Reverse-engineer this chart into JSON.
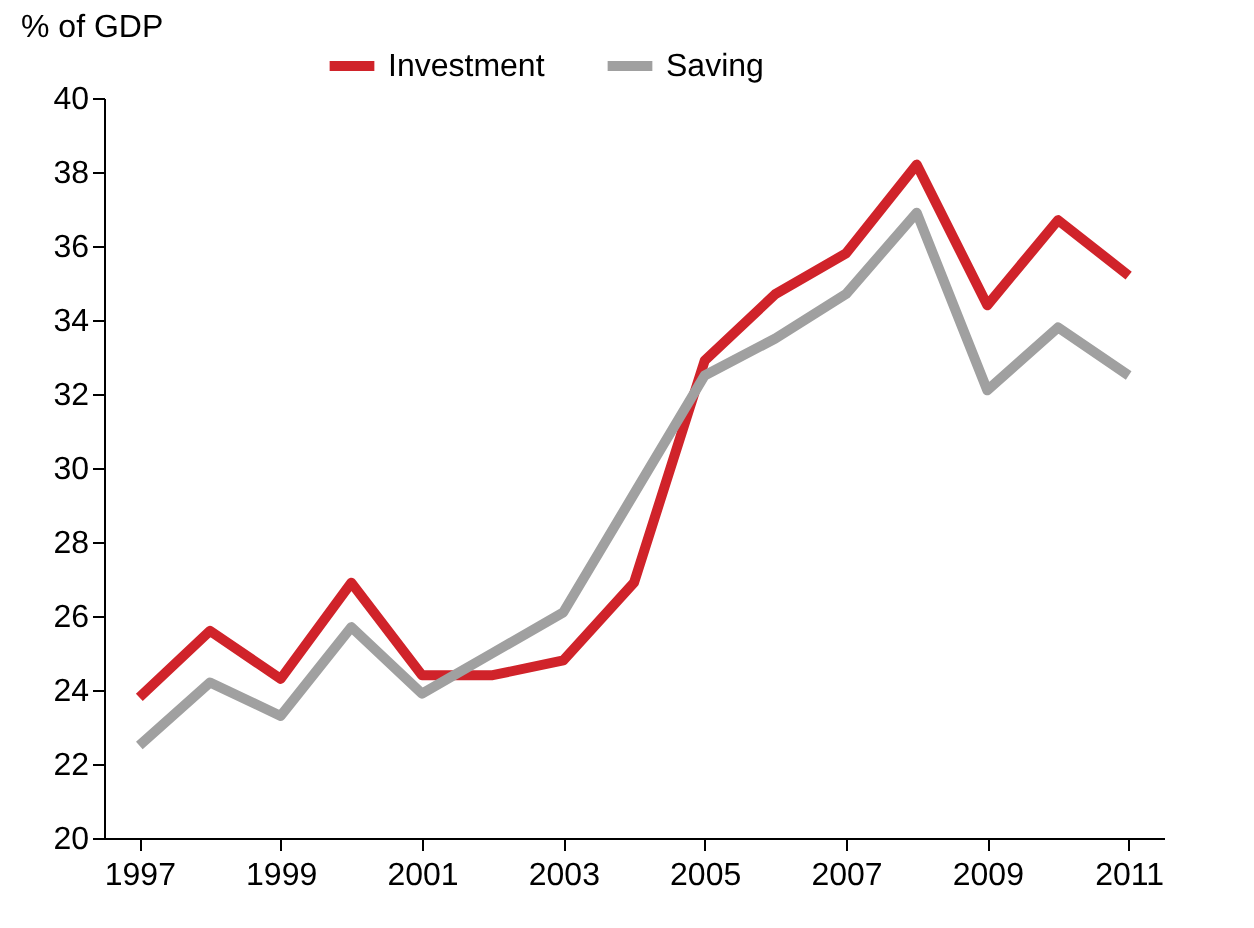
{
  "chart_data": {
    "type": "line",
    "ylabel": "% of GDP",
    "x": [
      1997,
      1998,
      1999,
      2000,
      2001,
      2002,
      2003,
      2004,
      2005,
      2006,
      2007,
      2008,
      2009,
      2010,
      2011
    ],
    "series": [
      {
        "name": "Investment",
        "color": "#d0232a",
        "values": [
          23.8,
          25.6,
          24.3,
          26.9,
          24.4,
          24.4,
          24.8,
          26.9,
          32.9,
          34.7,
          35.8,
          38.2,
          34.4,
          36.7,
          35.2
        ]
      },
      {
        "name": "Saving",
        "color": "#a0a0a0",
        "values": [
          22.5,
          24.2,
          23.3,
          25.7,
          23.9,
          25.0,
          26.1,
          29.3,
          32.5,
          33.5,
          34.7,
          36.9,
          32.1,
          33.8,
          32.5
        ]
      }
    ],
    "xlim": [
      1996.5,
      2011.5
    ],
    "xticks": [
      1997,
      1999,
      2001,
      2003,
      2005,
      2007,
      2009,
      2011
    ],
    "ylim": [
      20,
      40
    ],
    "yticks": [
      20,
      22,
      24,
      26,
      28,
      30,
      32,
      34,
      36,
      38,
      40
    ],
    "grid": false,
    "legend": "top",
    "marker": "none",
    "line_style": "solid"
  }
}
